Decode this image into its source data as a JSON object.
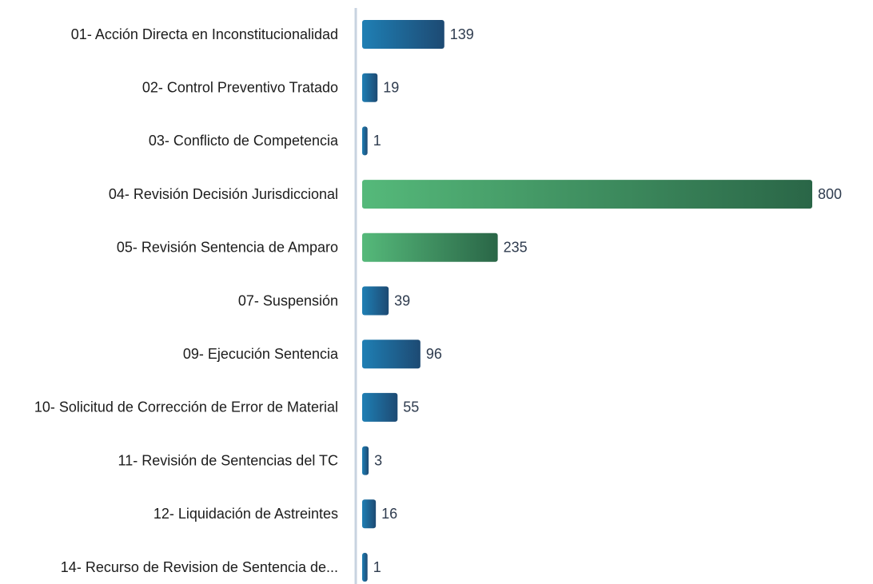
{
  "chart_data": {
    "type": "hbar",
    "categories": [
      "01- Acción Directa en Inconstitucionalidad",
      "02- Control Preventivo Tratado",
      "03- Conflicto de Competencia",
      "04- Revisión Decisión Jurisdiccional",
      "05- Revisión Sentencia de Amparo",
      "07- Suspensión",
      "09- Ejecución Sentencia",
      "10- Solicitud de Corrección de Error de Material",
      "11- Revisión de Sentencias del TC",
      "12- Liquidación de Astreintes",
      "14- Recurso de Revision de Sentencia de..."
    ],
    "values": [
      139,
      19,
      1,
      800,
      235,
      39,
      96,
      55,
      3,
      16,
      1
    ],
    "colors": [
      [
        "#1f7fb4",
        "#1d4a73"
      ],
      [
        "#1f7fb4",
        "#1d4a73"
      ],
      [
        "#1f7fb4",
        "#1d4a73"
      ],
      [
        "#55b97a",
        "#2a6647"
      ],
      [
        "#55b97a",
        "#2a6647"
      ],
      [
        "#1f7fb4",
        "#1d4a73"
      ],
      [
        "#1f7fb4",
        "#1d4a73"
      ],
      [
        "#1f7fb4",
        "#1d4a73"
      ],
      [
        "#1f7fb4",
        "#1d4a73"
      ],
      [
        "#1f7fb4",
        "#1d4a73"
      ],
      [
        "#1f7fb4",
        "#1d4a73"
      ]
    ],
    "xlim": [
      0,
      800
    ]
  }
}
